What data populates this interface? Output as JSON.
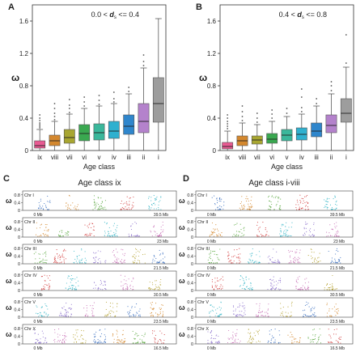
{
  "figure": {
    "ages": [
      "ix",
      "viii",
      "vii",
      "vi",
      "v",
      "iv",
      "iii",
      "ii",
      "i"
    ],
    "box_colors": [
      "#e85a92",
      "#d4882e",
      "#a8a631",
      "#3aa850",
      "#3ab79b",
      "#2fb0cf",
      "#2f86cc",
      "#b482cc",
      "#9d9d9d"
    ],
    "panel_A": {
      "letter": "A",
      "header": "0.0 < ",
      "header_sym": "d",
      "header_sub": "s",
      "header_tail": " <= 0.4",
      "ylabel": "ω",
      "xlabel": "Age class",
      "yticks": [
        "0",
        "0.4",
        "0.8",
        "1.2",
        "1.6"
      ]
    },
    "panel_B": {
      "letter": "B",
      "header": "0.4 < ",
      "header_sym": "d",
      "header_sub": "s",
      "header_tail": " <= 0.8",
      "ylabel": "ω",
      "xlabel": "Age class",
      "yticks": [
        "0",
        "0.4",
        "0.8",
        "1.2",
        "1.6"
      ]
    },
    "panel_C": {
      "letter": "C",
      "title": "Age class ix",
      "ylabel": "ω",
      "yticks": [
        "0",
        "0.4",
        "0.8"
      ],
      "chromosomes": [
        {
          "name": "Chr I",
          "start": "0 Mb",
          "end": "39.5 Mb"
        },
        {
          "name": "Chr II",
          "start": "0 Mb",
          "end": "23 Mb"
        },
        {
          "name": "Chr III",
          "start": "0 Mb",
          "end": "21.5 Mb"
        },
        {
          "name": "Chr IV",
          "start": "0 Mb",
          "end": "30.5 Mb"
        },
        {
          "name": "Chr V",
          "start": "0 Mb",
          "end": "23.5 Mb"
        },
        {
          "name": "Chr X",
          "start": "0 Mb",
          "end": "16.5 Mb"
        }
      ]
    },
    "panel_D": {
      "letter": "D",
      "title": "Age class i-viii",
      "ylabel": "ω",
      "yticks": [
        "0",
        "0.4",
        "0.8"
      ],
      "chromosomes": [
        {
          "name": "Chr I",
          "start": "0 Mb",
          "end": "39.5 Mb"
        },
        {
          "name": "Chr II",
          "start": "0 Mb",
          "end": "23 Mb"
        },
        {
          "name": "Chr III",
          "start": "0 Mb",
          "end": "21.5 Mb"
        },
        {
          "name": "Chr IV",
          "start": "0 Mb",
          "end": "30.5 Mb"
        },
        {
          "name": "Chr V",
          "start": "0 Mb",
          "end": "23.5 Mb"
        },
        {
          "name": "Chr X",
          "start": "0 Mb",
          "end": "16.5 Mb"
        }
      ]
    }
  },
  "chart_data": [
    {
      "type": "box",
      "panel": "A",
      "xlabel": "Age class",
      "ylabel": "ω",
      "ylim": [
        0,
        1.8
      ],
      "categories": [
        "ix",
        "viii",
        "vii",
        "vi",
        "v",
        "iv",
        "iii",
        "ii",
        "i"
      ],
      "boxes": [
        {
          "cat": "ix",
          "lo": 0.0,
          "q1": 0.03,
          "med": 0.06,
          "q3": 0.12,
          "hi": 0.26
        },
        {
          "cat": "viii",
          "lo": 0.0,
          "q1": 0.06,
          "med": 0.12,
          "q3": 0.19,
          "hi": 0.36
        },
        {
          "cat": "vii",
          "lo": 0.0,
          "q1": 0.09,
          "med": 0.16,
          "q3": 0.26,
          "hi": 0.45
        },
        {
          "cat": "vi",
          "lo": 0.0,
          "q1": 0.12,
          "med": 0.21,
          "q3": 0.32,
          "hi": 0.52
        },
        {
          "cat": "v",
          "lo": 0.0,
          "q1": 0.13,
          "med": 0.22,
          "q3": 0.33,
          "hi": 0.55
        },
        {
          "cat": "iv",
          "lo": 0.0,
          "q1": 0.15,
          "med": 0.24,
          "q3": 0.36,
          "hi": 0.58
        },
        {
          "cat": "iii",
          "lo": 0.0,
          "q1": 0.2,
          "med": 0.3,
          "q3": 0.44,
          "hi": 0.7
        },
        {
          "cat": "ii",
          "lo": 0.0,
          "q1": 0.22,
          "med": 0.36,
          "q3": 0.58,
          "hi": 1.02
        },
        {
          "cat": "i",
          "lo": 0.0,
          "q1": 0.35,
          "med": 0.58,
          "q3": 0.9,
          "hi": 1.63
        }
      ],
      "outliers": [
        {
          "cat": "ix",
          "values": [
            0.28,
            0.3,
            0.32,
            0.34,
            0.37,
            0.4,
            0.44
          ]
        },
        {
          "cat": "viii",
          "values": [
            0.38,
            0.42,
            0.46,
            0.52,
            0.58
          ]
        },
        {
          "cat": "vii",
          "values": [
            0.47,
            0.52,
            0.56,
            0.63
          ]
        },
        {
          "cat": "vi",
          "values": [
            0.55,
            0.6,
            0.66
          ]
        },
        {
          "cat": "v",
          "values": [
            0.57,
            0.62,
            0.68
          ]
        },
        {
          "cat": "iv",
          "values": [
            0.6,
            0.64,
            0.72
          ]
        },
        {
          "cat": "iii",
          "values": [
            0.73,
            0.78
          ]
        },
        {
          "cat": "ii",
          "values": [
            1.05,
            1.1,
            1.18
          ]
        },
        {
          "cat": "i",
          "values": []
        }
      ]
    },
    {
      "type": "box",
      "panel": "B",
      "xlabel": "Age class",
      "ylabel": "ω",
      "ylim": [
        0,
        1.8
      ],
      "categories": [
        "ix",
        "viii",
        "vii",
        "vi",
        "v",
        "iv",
        "iii",
        "ii",
        "i"
      ],
      "boxes": [
        {
          "cat": "ix",
          "lo": 0.0,
          "q1": 0.02,
          "med": 0.05,
          "q3": 0.1,
          "hi": 0.24
        },
        {
          "cat": "viii",
          "lo": 0.0,
          "q1": 0.06,
          "med": 0.12,
          "q3": 0.18,
          "hi": 0.34
        },
        {
          "cat": "vii",
          "lo": 0.0,
          "q1": 0.08,
          "med": 0.13,
          "q3": 0.18,
          "hi": 0.32
        },
        {
          "cat": "vi",
          "lo": 0.0,
          "q1": 0.09,
          "med": 0.14,
          "q3": 0.21,
          "hi": 0.36
        },
        {
          "cat": "v",
          "lo": 0.0,
          "q1": 0.12,
          "med": 0.19,
          "q3": 0.26,
          "hi": 0.42
        },
        {
          "cat": "iv",
          "lo": 0.0,
          "q1": 0.13,
          "med": 0.2,
          "q3": 0.28,
          "hi": 0.45
        },
        {
          "cat": "iii",
          "lo": 0.0,
          "q1": 0.17,
          "med": 0.24,
          "q3": 0.34,
          "hi": 0.55
        },
        {
          "cat": "ii",
          "lo": 0.0,
          "q1": 0.22,
          "med": 0.31,
          "q3": 0.44,
          "hi": 0.7
        },
        {
          "cat": "i",
          "lo": 0.0,
          "q1": 0.35,
          "med": 0.46,
          "q3": 0.64,
          "hi": 1.03
        }
      ],
      "outliers": [
        {
          "cat": "ix",
          "values": [
            0.27,
            0.3,
            0.33,
            0.36,
            0.4,
            0.44
          ]
        },
        {
          "cat": "viii",
          "values": [
            0.37,
            0.42,
            0.48,
            0.55
          ]
        },
        {
          "cat": "vii",
          "values": [
            0.35,
            0.4,
            0.46
          ]
        },
        {
          "cat": "vi",
          "values": [
            0.4,
            0.45,
            0.5
          ]
        },
        {
          "cat": "v",
          "values": [
            0.46,
            0.52
          ]
        },
        {
          "cat": "iv",
          "values": [
            0.48,
            0.53,
            0.66,
            0.76
          ]
        },
        {
          "cat": "iii",
          "values": [
            0.58,
            0.64
          ]
        },
        {
          "cat": "ii",
          "values": [
            0.74,
            0.8,
            0.85
          ]
        },
        {
          "cat": "i",
          "values": [
            1.08,
            1.43
          ]
        }
      ]
    }
  ]
}
